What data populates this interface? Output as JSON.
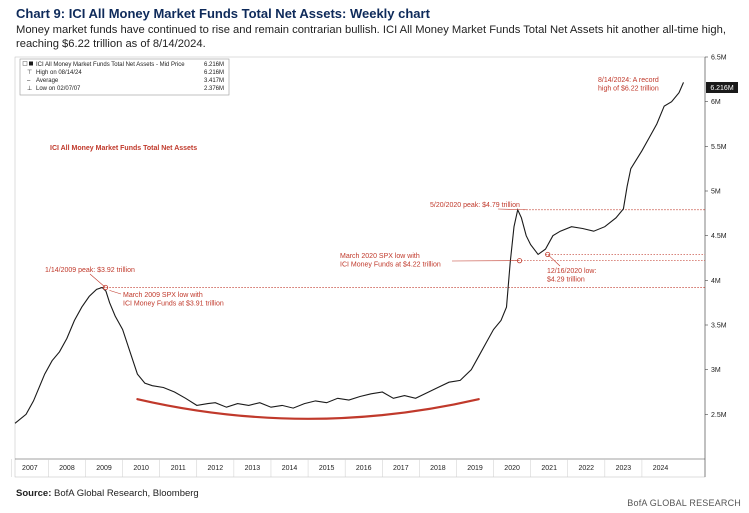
{
  "header": {
    "title": "Chart 9: ICI All Money Market Funds Total Net Assets: Weekly chart",
    "subtitle": "Money market funds have continued to rise and remain contrarian bullish. ICI All Money Market Funds Total Net Assets hit another all-time high, reaching $6.22 trillion as of 8/14/2024."
  },
  "footer": {
    "source_label": "Source:",
    "source_text": " BofA Global Research, Bloomberg",
    "brand": "BofA GLOBAL RESEARCH"
  },
  "legend": {
    "rows": [
      {
        "label": "ICI All Money Market Funds Total Net Assets - Mid Price",
        "value": "6.216M"
      },
      {
        "label": "High on 08/14/24",
        "value": "6.216M"
      },
      {
        "label": "Average",
        "value": "3.417M"
      },
      {
        "label": "Low on 02/07/07",
        "value": "2.376M"
      }
    ]
  },
  "colors": {
    "line": "#1a1a1a",
    "annotation": "#c0392b",
    "axis": "#444444",
    "brand_title": "#0e2a5a"
  },
  "chart_data": {
    "type": "line",
    "title": "ICI All Money Market Funds Total Net Assets",
    "ylabel": "",
    "xlabel": "",
    "ylim": [
      2.0,
      6.5
    ],
    "xlim": [
      2006.6,
      2025.2
    ],
    "y_ticks": [
      2.5,
      3,
      3.5,
      4,
      4.5,
      5,
      5.5,
      6,
      6.5
    ],
    "y_tick_labels": [
      "2.5M",
      "3M",
      "3.5M",
      "4M",
      "4.5M",
      "5M",
      "5.5M",
      "6M",
      "6.5M"
    ],
    "x_tick_labels": [
      "2007",
      "2008",
      "2009",
      "2010",
      "2011",
      "2012",
      "2013",
      "2014",
      "2015",
      "2016",
      "2017",
      "2018",
      "2019",
      "2020",
      "2021",
      "2022",
      "2023",
      "2024"
    ],
    "last_value_label": "6.216M",
    "series": [
      {
        "name": "ICI All Money Market Funds Total Net Assets - Mid Price",
        "x": [
          2006.6,
          2006.9,
          2007.1,
          2007.4,
          2007.6,
          2007.8,
          2008.0,
          2008.2,
          2008.4,
          2008.6,
          2008.8,
          2008.95,
          2009.05,
          2009.15,
          2009.3,
          2009.5,
          2009.7,
          2009.9,
          2010.1,
          2010.3,
          2010.6,
          2010.9,
          2011.2,
          2011.5,
          2011.8,
          2012.0,
          2012.3,
          2012.6,
          2012.9,
          2013.2,
          2013.5,
          2013.8,
          2014.1,
          2014.4,
          2014.7,
          2015.0,
          2015.3,
          2015.6,
          2015.9,
          2016.2,
          2016.5,
          2016.8,
          2017.1,
          2017.4,
          2017.7,
          2018.0,
          2018.3,
          2018.6,
          2018.9,
          2019.1,
          2019.3,
          2019.5,
          2019.7,
          2019.85,
          2019.95,
          2020.05,
          2020.15,
          2020.25,
          2020.38,
          2020.5,
          2020.7,
          2020.9,
          2021.1,
          2021.3,
          2021.6,
          2021.9,
          2022.2,
          2022.5,
          2022.8,
          2023.0,
          2023.1,
          2023.2,
          2023.35,
          2023.5,
          2023.7,
          2023.9,
          2024.1,
          2024.3,
          2024.5,
          2024.62
        ],
        "values": [
          2.4,
          2.5,
          2.65,
          2.95,
          3.1,
          3.2,
          3.35,
          3.55,
          3.7,
          3.82,
          3.9,
          3.92,
          3.88,
          3.75,
          3.6,
          3.45,
          3.2,
          2.95,
          2.85,
          2.82,
          2.8,
          2.75,
          2.68,
          2.6,
          2.62,
          2.63,
          2.58,
          2.62,
          2.6,
          2.63,
          2.58,
          2.6,
          2.57,
          2.62,
          2.65,
          2.63,
          2.68,
          2.66,
          2.7,
          2.73,
          2.75,
          2.68,
          2.71,
          2.68,
          2.74,
          2.8,
          2.86,
          2.88,
          3.0,
          3.15,
          3.3,
          3.45,
          3.55,
          3.7,
          4.2,
          4.6,
          4.79,
          4.7,
          4.5,
          4.4,
          4.29,
          4.35,
          4.5,
          4.55,
          4.6,
          4.58,
          4.55,
          4.6,
          4.7,
          4.8,
          5.05,
          5.25,
          5.35,
          5.45,
          5.6,
          5.75,
          5.95,
          6.0,
          6.1,
          6.216
        ]
      }
    ],
    "reference_lines": [
      {
        "value": 3.92,
        "style": "dotted"
      },
      {
        "value": 4.79,
        "style": "dotted"
      },
      {
        "value": 4.29,
        "style": "dotted"
      },
      {
        "value": 4.22,
        "style": "dotted"
      }
    ],
    "annotations": [
      {
        "text": "ICI All Money Market Funds Total Net Assets",
        "style": "bold-label"
      },
      {
        "lines": [
          "1/14/2009 peak: $3.92 trillion"
        ],
        "x": 2009.04,
        "y": 3.92
      },
      {
        "lines": [
          "March 2009 SPX low with",
          "ICI Money Funds at $3.91 trillion"
        ],
        "x": 2009.2,
        "y": 3.91
      },
      {
        "lines": [
          "5/20/2020 peak: $4.79 trillion"
        ],
        "x": 2020.38,
        "y": 4.79
      },
      {
        "lines": [
          "March 2020 SPX low with",
          "ICI Money Funds at $4.22 trillion"
        ],
        "x": 2020.2,
        "y": 4.22
      },
      {
        "lines": [
          "12/16/2020 low:",
          "$4.29 trillion"
        ],
        "x": 2020.96,
        "y": 4.29
      },
      {
        "lines": [
          "8/14/2024: A record",
          "high of $6.22 trillion"
        ],
        "x": 2024.62,
        "y": 6.216
      }
    ],
    "trend_arc": {
      "x_start": 2009.9,
      "x_end": 2019.1,
      "y_ends": 2.67,
      "y_mid": 2.45
    }
  }
}
